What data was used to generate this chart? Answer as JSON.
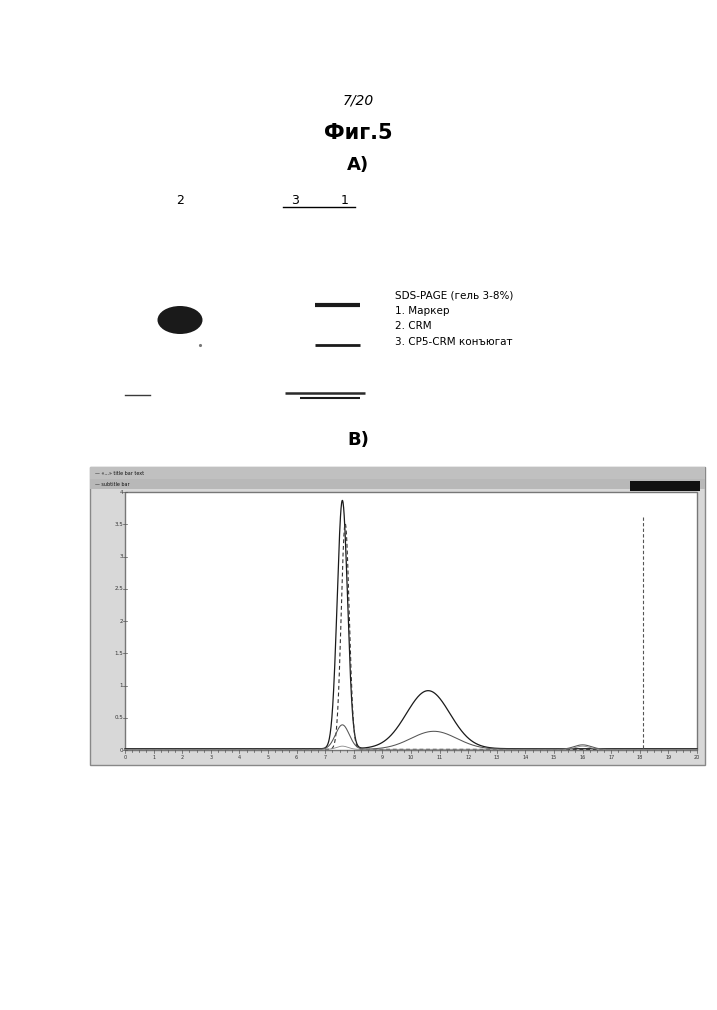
{
  "title_top": "7/20",
  "title_main": "Фиг.5",
  "label_A": "A)",
  "label_B": "B)",
  "annotation_text": "SDS-PAGE (гель 3-8%)\n1. Маркер\n2. CRM\n3. CP5-CRM конъюгат",
  "lane_labels": [
    "2",
    "3",
    "1"
  ],
  "bg_color": "#ffffff",
  "page_width": 7.07,
  "page_height": 10.0
}
